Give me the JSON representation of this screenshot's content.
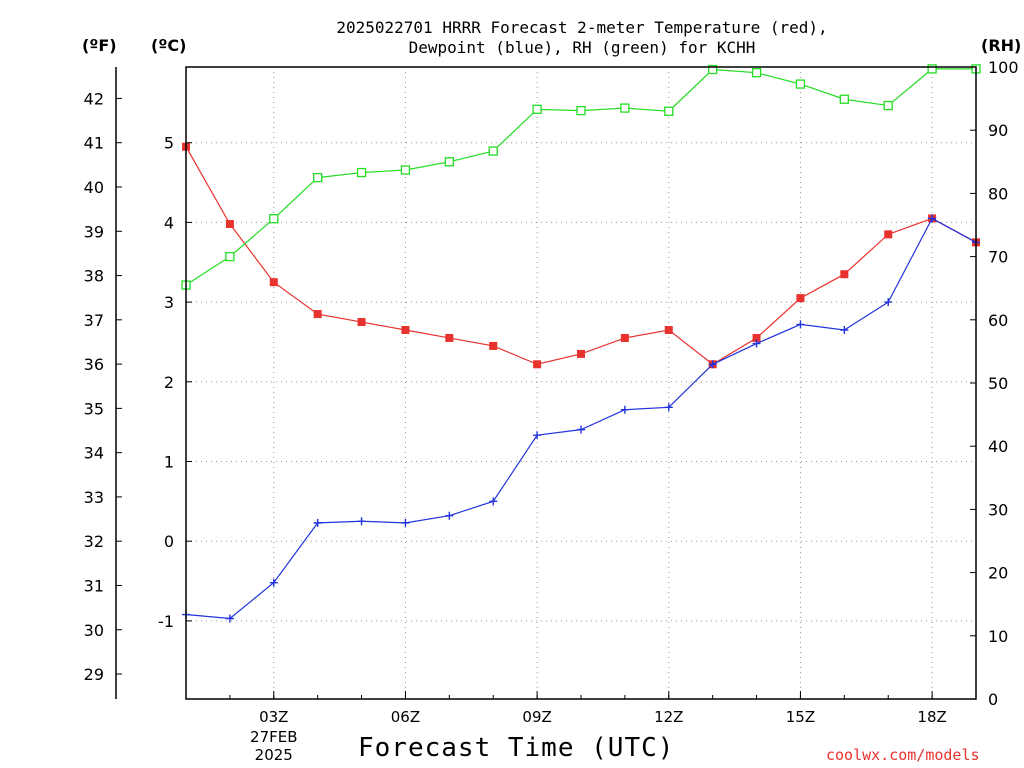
{
  "title_line1": "2025022701 HRRR Forecast 2-meter Temperature (red),",
  "title_line2": "Dewpoint (blue), RH (green) for KCHH",
  "units": {
    "f": "(ºF)",
    "c": "(ºC)",
    "rh": "(RH)"
  },
  "xtitle": "Forecast Time (UTC)",
  "credit": "coolwx.com/models",
  "colors": {
    "temperature": "#e8322e",
    "dewpoint": "#2233dd",
    "rh": "#22dd22",
    "grid": "#999999",
    "credit": "#e8322e"
  },
  "chart_data": {
    "type": "line",
    "x_hours": [
      1,
      2,
      3,
      4,
      5,
      6,
      7,
      8,
      9,
      10,
      11,
      12,
      13,
      14,
      15,
      16,
      17,
      18,
      19
    ],
    "xlim": [
      1,
      19
    ],
    "x_ticks": [
      {
        "hour": 3,
        "label": "03Z",
        "sub1": "27FEB",
        "sub2": "2025"
      },
      {
        "hour": 6,
        "label": "06Z"
      },
      {
        "hour": 9,
        "label": "09Z"
      },
      {
        "hour": 12,
        "label": "12Z"
      },
      {
        "hour": 15,
        "label": "15Z"
      },
      {
        "hour": 18,
        "label": "18Z"
      }
    ],
    "y_celsius": {
      "lim": [
        -1.98,
        5.95
      ],
      "ticks": [
        -1,
        0,
        1,
        2,
        3,
        4,
        5
      ],
      "tick_labels": [
        "-1",
        "0",
        "1",
        "2",
        "3",
        "4",
        "5"
      ]
    },
    "y_fahrenheit": {
      "ticks": [
        29,
        30,
        31,
        32,
        33,
        34,
        35,
        36,
        37,
        38,
        39,
        40,
        41,
        42
      ],
      "tick_labels": [
        "29",
        "30",
        "31",
        "32",
        "33",
        "34",
        "35",
        "36",
        "37",
        "38",
        "39",
        "40",
        "41",
        "42"
      ]
    },
    "y_rh": {
      "lim": [
        0,
        100
      ],
      "ticks": [
        0,
        10,
        20,
        30,
        40,
        50,
        60,
        70,
        80,
        90,
        100
      ],
      "tick_labels": [
        "0",
        "10",
        "20",
        "30",
        "40",
        "50",
        "60",
        "70",
        "80",
        "90",
        "100"
      ]
    },
    "grid": true,
    "series": [
      {
        "name": "Temperature",
        "axis": "celsius",
        "marker": "filled-square",
        "values": [
          4.95,
          3.98,
          3.25,
          2.85,
          2.75,
          2.65,
          2.55,
          2.45,
          2.22,
          2.35,
          2.55,
          2.65,
          2.22,
          2.55,
          3.05,
          3.35,
          3.85,
          4.05,
          3.75
        ]
      },
      {
        "name": "Dewpoint",
        "axis": "celsius",
        "marker": "plus",
        "values": [
          -0.92,
          -0.97,
          -0.52,
          0.23,
          0.25,
          0.23,
          0.32,
          0.5,
          1.33,
          1.4,
          1.65,
          1.68,
          2.22,
          2.48,
          2.72,
          2.65,
          3.0,
          4.05,
          3.75
        ]
      },
      {
        "name": "RH",
        "axis": "rh",
        "marker": "open-square",
        "values": [
          65.5,
          70,
          76,
          82.5,
          83.3,
          83.7,
          85,
          86.7,
          93.3,
          93.1,
          93.5,
          93,
          99.6,
          99.1,
          97.3,
          94.9,
          93.9,
          99.7,
          99.7
        ]
      }
    ]
  }
}
